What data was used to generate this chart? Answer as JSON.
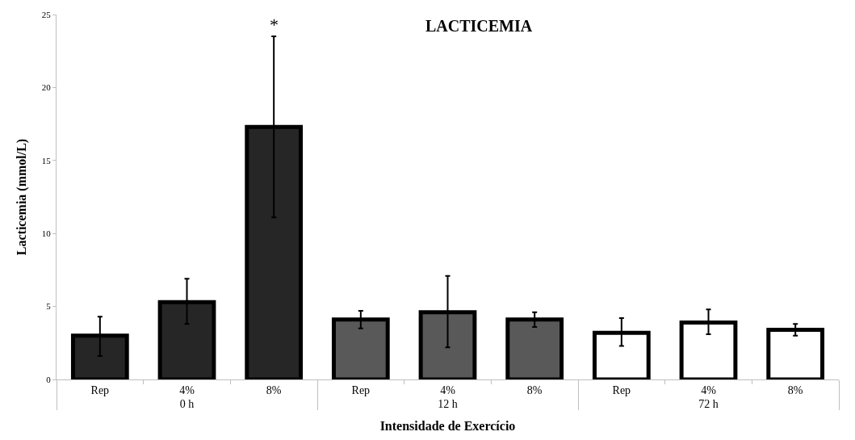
{
  "chart_data": {
    "type": "bar",
    "title": "LACTICEMIA",
    "xlabel": "Intensidade de Exercício",
    "ylabel": "Lacticemia (mmol/L)",
    "categories": [
      "Rep",
      "4%",
      "8%",
      "Rep",
      "4%",
      "8%",
      "Rep",
      "4%",
      "8%"
    ],
    "values": [
      3.0,
      5.3,
      17.3,
      4.1,
      4.6,
      4.1,
      3.2,
      3.9,
      3.4
    ],
    "colors": [
      "#262626",
      "#262626",
      "#262626",
      "#595959",
      "#595959",
      "#595959",
      "#ffffff",
      "#ffffff",
      "#ffffff"
    ],
    "errors": [
      [
        1.6,
        4.3
      ],
      [
        3.8,
        6.9
      ],
      [
        11.1,
        23.5
      ],
      [
        3.5,
        4.7
      ],
      [
        2.2,
        7.1
      ],
      [
        3.6,
        4.6
      ],
      [
        2.3,
        4.2
      ],
      [
        3.1,
        4.8
      ],
      [
        3.0,
        3.8
      ]
    ],
    "annotations": [
      "0 h",
      "12 h",
      "72 h",
      {
        "text": "*",
        "x": "8%",
        "y": 23.5
      }
    ],
    "ylim": [
      0,
      25
    ],
    "yticks": [
      0,
      5,
      10,
      15,
      20,
      25
    ]
  }
}
